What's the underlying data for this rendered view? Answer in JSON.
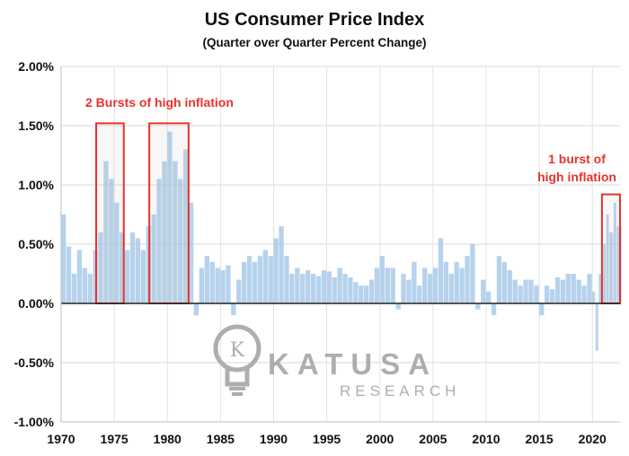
{
  "chart_data": {
    "type": "bar",
    "title": "US Consumer Price Index",
    "subtitle": "(Quarter over Quarter Percent Change)",
    "xlabel": "",
    "ylabel": "",
    "xlim": [
      1970,
      2022.6
    ],
    "ylim": [
      -1.0,
      2.0
    ],
    "y_ticks": [
      {
        "value": 2.0,
        "label": "2.00%"
      },
      {
        "value": 1.5,
        "label": "1.50%"
      },
      {
        "value": 1.0,
        "label": "1.00%"
      },
      {
        "value": 0.5,
        "label": "0.50%"
      },
      {
        "value": 0.0,
        "label": "0.00%"
      },
      {
        "value": -0.5,
        "label": "-0.50%"
      },
      {
        "value": -1.0,
        "label": "-1.00%"
      }
    ],
    "x_ticks": [
      {
        "value": 1970,
        "label": "1970"
      },
      {
        "value": 1975,
        "label": "1975"
      },
      {
        "value": 1980,
        "label": "1980"
      },
      {
        "value": 1985,
        "label": "1985"
      },
      {
        "value": 1990,
        "label": "1990"
      },
      {
        "value": 1995,
        "label": "1995"
      },
      {
        "value": 2000,
        "label": "2000"
      },
      {
        "value": 2005,
        "label": "2005"
      },
      {
        "value": 2010,
        "label": "2010"
      },
      {
        "value": 2015,
        "label": "2015"
      },
      {
        "value": 2020,
        "label": "2020"
      }
    ],
    "grid": true,
    "series": [
      {
        "color": "#9dc3e6",
        "points": [
          [
            1970.0,
            0.75
          ],
          [
            1970.5,
            0.48
          ],
          [
            1971.0,
            0.25
          ],
          [
            1971.5,
            0.45
          ],
          [
            1972.0,
            0.3
          ],
          [
            1972.5,
            0.25
          ],
          [
            1973.0,
            0.45
          ],
          [
            1973.5,
            0.6
          ],
          [
            1974.0,
            1.2
          ],
          [
            1974.5,
            1.05
          ],
          [
            1975.0,
            0.85
          ],
          [
            1975.5,
            0.6
          ],
          [
            1976.0,
            0.45
          ],
          [
            1976.5,
            0.6
          ],
          [
            1977.0,
            0.55
          ],
          [
            1977.5,
            0.45
          ],
          [
            1978.0,
            0.65
          ],
          [
            1978.5,
            0.75
          ],
          [
            1979.0,
            1.05
          ],
          [
            1979.5,
            1.2
          ],
          [
            1980.0,
            1.45
          ],
          [
            1980.5,
            1.2
          ],
          [
            1981.0,
            1.05
          ],
          [
            1981.5,
            1.3
          ],
          [
            1982.0,
            0.85
          ],
          [
            1982.5,
            -0.1
          ],
          [
            1983.0,
            0.3
          ],
          [
            1983.5,
            0.4
          ],
          [
            1984.0,
            0.35
          ],
          [
            1984.5,
            0.3
          ],
          [
            1985.0,
            0.28
          ],
          [
            1985.5,
            0.32
          ],
          [
            1986.0,
            -0.1
          ],
          [
            1986.5,
            0.2
          ],
          [
            1987.0,
            0.35
          ],
          [
            1987.5,
            0.4
          ],
          [
            1988.0,
            0.35
          ],
          [
            1988.5,
            0.4
          ],
          [
            1989.0,
            0.45
          ],
          [
            1989.5,
            0.4
          ],
          [
            1990.0,
            0.55
          ],
          [
            1990.5,
            0.65
          ],
          [
            1991.0,
            0.4
          ],
          [
            1991.5,
            0.25
          ],
          [
            1992.0,
            0.3
          ],
          [
            1992.5,
            0.25
          ],
          [
            1993.0,
            0.28
          ],
          [
            1993.5,
            0.25
          ],
          [
            1994.0,
            0.23
          ],
          [
            1994.5,
            0.28
          ],
          [
            1995.0,
            0.27
          ],
          [
            1995.5,
            0.22
          ],
          [
            1996.0,
            0.3
          ],
          [
            1996.5,
            0.25
          ],
          [
            1997.0,
            0.22
          ],
          [
            1997.5,
            0.18
          ],
          [
            1998.0,
            0.15
          ],
          [
            1998.5,
            0.15
          ],
          [
            1999.0,
            0.2
          ],
          [
            1999.5,
            0.3
          ],
          [
            2000.0,
            0.4
          ],
          [
            2000.5,
            0.3
          ],
          [
            2001.0,
            0.3
          ],
          [
            2001.5,
            -0.05
          ],
          [
            2002.0,
            0.25
          ],
          [
            2002.5,
            0.2
          ],
          [
            2003.0,
            0.35
          ],
          [
            2003.5,
            0.15
          ],
          [
            2004.0,
            0.3
          ],
          [
            2004.5,
            0.25
          ],
          [
            2005.0,
            0.3
          ],
          [
            2005.5,
            0.55
          ],
          [
            2006.0,
            0.35
          ],
          [
            2006.5,
            0.25
          ],
          [
            2007.0,
            0.35
          ],
          [
            2007.5,
            0.3
          ],
          [
            2008.0,
            0.4
          ],
          [
            2008.5,
            0.5
          ],
          [
            2009.0,
            -0.05
          ],
          [
            2009.5,
            0.2
          ],
          [
            2010.0,
            0.1
          ],
          [
            2010.5,
            -0.1
          ],
          [
            2011.0,
            0.4
          ],
          [
            2011.5,
            0.35
          ],
          [
            2012.0,
            0.28
          ],
          [
            2012.5,
            0.2
          ],
          [
            2013.0,
            0.15
          ],
          [
            2013.5,
            0.2
          ],
          [
            2014.0,
            0.2
          ],
          [
            2014.5,
            0.15
          ],
          [
            2015.0,
            -0.1
          ],
          [
            2015.5,
            0.15
          ],
          [
            2016.0,
            0.12
          ],
          [
            2016.5,
            0.22
          ],
          [
            2017.0,
            0.2
          ],
          [
            2017.5,
            0.25
          ],
          [
            2018.0,
            0.25
          ],
          [
            2018.5,
            0.2
          ],
          [
            2019.0,
            0.15
          ],
          [
            2019.5,
            0.25
          ],
          [
            2020.0,
            0.1
          ],
          [
            2020.3,
            -0.4
          ],
          [
            2020.6,
            0.25
          ],
          [
            2021.0,
            0.5
          ],
          [
            2021.3,
            0.75
          ],
          [
            2021.6,
            0.6
          ],
          [
            2022.0,
            0.85
          ],
          [
            2022.3,
            0.65
          ]
        ]
      }
    ],
    "annotations": [
      {
        "text": "2 Bursts of high inflation",
        "lines": [
          "2 Bursts of high inflation"
        ],
        "color": "#e8322a"
      },
      {
        "text": "1 burst of high inflation",
        "lines": [
          "1 burst of",
          "high inflation"
        ],
        "color": "#e8322a"
      }
    ],
    "highlight_boxes": [
      {
        "x0": 1973.3,
        "x1": 1975.9,
        "y0": 0.0,
        "y1": 1.52
      },
      {
        "x0": 1978.3,
        "x1": 1982.0,
        "y0": 0.0,
        "y1": 1.52
      },
      {
        "x0": 2020.9,
        "x1": 2023.4,
        "y0": 0.0,
        "y1": 0.92
      }
    ],
    "accent_color": "#e8322a"
  },
  "watermark": {
    "brand": "KATUSA",
    "tagline": "RESEARCH",
    "color": "#a6a6a6"
  }
}
